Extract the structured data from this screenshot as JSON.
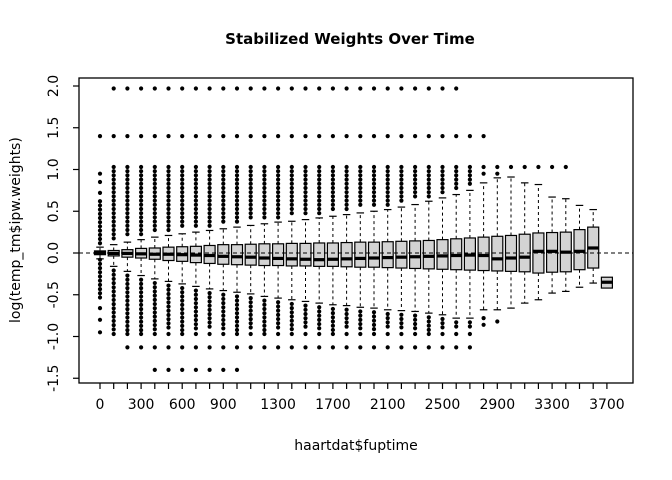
{
  "figure": {
    "title": "Stabilized Weights Over Time",
    "xlabel": "haartdat$fuptime",
    "ylabel": "log(temp_tm$ipw.weights)"
  },
  "colors": {
    "box_fill": "#d3d3d3",
    "stroke": "#000000",
    "background": "#ffffff"
  },
  "chart_data": {
    "type": "boxplot",
    "title": "Stabilized Weights Over Time",
    "xlabel": "haartdat$fuptime",
    "ylabel": "log(temp_tm$ipw.weights)",
    "grid": false,
    "reference_line_y": 0,
    "reference_line_style": "dashed",
    "x_categories_step": 100,
    "x_range": [
      0,
      3700
    ],
    "x_labeled_ticks": [
      0,
      300,
      600,
      900,
      1300,
      1700,
      2100,
      2500,
      2900,
      3300,
      3700
    ],
    "x_tick_labels": [
      "0",
      "300",
      "600",
      "900",
      "1300",
      "1700",
      "2100",
      "2500",
      "2900",
      "3300",
      "3700"
    ],
    "y_ticks": [
      2.0,
      1.5,
      1.0,
      0.5,
      0.0,
      -0.5,
      -1.0,
      -1.5
    ],
    "y_tick_labels": [
      "2.0",
      "1.5",
      "1.0",
      "0.5",
      "0.0",
      "-0.5",
      "-1.0",
      "-1.5"
    ],
    "ylim": [
      -1.56,
      2.1
    ],
    "boxes": [
      {
        "t": 0,
        "med": 0.0,
        "q1": -0.02,
        "q3": 0.025,
        "wlo": -0.07,
        "whi": 0.07,
        "hi_col": [
          0.08,
          0.62
        ],
        "lo_col": [
          -0.08,
          -0.55
        ],
        "hi_dots": [
          0.72,
          0.85,
          0.95
        ],
        "lo_dots": [
          -0.66,
          -0.8,
          -0.95
        ]
      },
      {
        "t": 100,
        "med": -0.005,
        "q1": -0.035,
        "q3": 0.03,
        "wlo": -0.16,
        "whi": 0.1,
        "hi_col": [
          0.15,
          1.03
        ],
        "lo_col": [
          -0.21,
          -0.93
        ],
        "hi_dots": [],
        "lo_dots": []
      },
      {
        "t": 200,
        "med": -0.005,
        "q1": -0.05,
        "q3": 0.04,
        "wlo": -0.22,
        "whi": 0.13,
        "hi_col": [
          0.18,
          1.03
        ],
        "lo_col": [
          -0.27,
          -0.93
        ],
        "hi_dots": [],
        "lo_dots": []
      },
      {
        "t": 300,
        "med": -0.01,
        "q1": -0.06,
        "q3": 0.055,
        "wlo": -0.27,
        "whi": 0.16,
        "hi_col": [
          0.21,
          1.03
        ],
        "lo_col": [
          -0.32,
          -0.93
        ],
        "hi_dots": [],
        "lo_dots": []
      },
      {
        "t": 400,
        "med": -0.015,
        "q1": -0.075,
        "q3": 0.06,
        "wlo": -0.31,
        "whi": 0.19,
        "hi_col": [
          0.24,
          1.03
        ],
        "lo_col": [
          -0.36,
          -0.93
        ],
        "hi_dots": [],
        "lo_dots": []
      },
      {
        "t": 500,
        "med": -0.015,
        "q1": -0.09,
        "q3": 0.07,
        "wlo": -0.34,
        "whi": 0.21,
        "hi_col": [
          0.26,
          1.03
        ],
        "lo_col": [
          -0.39,
          -0.93
        ],
        "hi_dots": [],
        "lo_dots": []
      },
      {
        "t": 600,
        "med": -0.02,
        "q1": -0.1,
        "q3": 0.075,
        "wlo": -0.37,
        "whi": 0.23,
        "hi_col": [
          0.28,
          1.03
        ],
        "lo_col": [
          -0.42,
          -0.93
        ],
        "hi_dots": [],
        "lo_dots": []
      },
      {
        "t": 700,
        "med": -0.025,
        "q1": -0.115,
        "q3": 0.08,
        "wlo": -0.4,
        "whi": 0.25,
        "hi_col": [
          0.3,
          1.03
        ],
        "lo_col": [
          -0.45,
          -0.93
        ],
        "hi_dots": [],
        "lo_dots": []
      },
      {
        "t": 800,
        "med": -0.03,
        "q1": -0.125,
        "q3": 0.09,
        "wlo": -0.43,
        "whi": 0.27,
        "hi_col": [
          0.32,
          1.03
        ],
        "lo_col": [
          -0.48,
          -0.93
        ],
        "hi_dots": [],
        "lo_dots": []
      },
      {
        "t": 900,
        "med": -0.04,
        "q1": -0.135,
        "q3": 0.1,
        "wlo": -0.45,
        "whi": 0.29,
        "hi_col": [
          0.34,
          1.03
        ],
        "lo_col": [
          -0.5,
          -0.93
        ],
        "hi_dots": [],
        "lo_dots": []
      },
      {
        "t": 1000,
        "med": -0.045,
        "q1": -0.14,
        "q3": 0.1,
        "wlo": -0.47,
        "whi": 0.31,
        "hi_col": [
          0.36,
          1.03
        ],
        "lo_col": [
          -0.52,
          -0.93
        ],
        "hi_dots": [],
        "lo_dots": []
      },
      {
        "t": 1100,
        "med": -0.05,
        "q1": -0.145,
        "q3": 0.105,
        "wlo": -0.49,
        "whi": 0.33,
        "hi_col": [
          0.38,
          1.03
        ],
        "lo_col": [
          -0.54,
          -0.93
        ],
        "hi_dots": [],
        "lo_dots": []
      },
      {
        "t": 1200,
        "med": -0.06,
        "q1": -0.15,
        "q3": 0.11,
        "wlo": -0.52,
        "whi": 0.35,
        "hi_col": [
          0.4,
          1.03
        ],
        "lo_col": [
          -0.57,
          -0.93
        ],
        "hi_dots": [],
        "lo_dots": []
      },
      {
        "t": 1300,
        "med": -0.065,
        "q1": -0.15,
        "q3": 0.11,
        "wlo": -0.54,
        "whi": 0.37,
        "hi_col": [
          0.42,
          1.03
        ],
        "lo_col": [
          -0.59,
          -0.93
        ],
        "hi_dots": [],
        "lo_dots": []
      },
      {
        "t": 1400,
        "med": -0.07,
        "q1": -0.155,
        "q3": 0.115,
        "wlo": -0.56,
        "whi": 0.38,
        "hi_col": [
          0.43,
          1.03
        ],
        "lo_col": [
          -0.61,
          -0.93
        ],
        "hi_dots": [],
        "lo_dots": []
      },
      {
        "t": 1500,
        "med": -0.075,
        "q1": -0.155,
        "q3": 0.115,
        "wlo": -0.58,
        "whi": 0.4,
        "hi_col": [
          0.45,
          1.03
        ],
        "lo_col": [
          -0.63,
          -0.93
        ],
        "hi_dots": [],
        "lo_dots": []
      },
      {
        "t": 1600,
        "med": -0.08,
        "q1": -0.16,
        "q3": 0.12,
        "wlo": -0.6,
        "whi": 0.42,
        "hi_col": [
          0.47,
          1.03
        ],
        "lo_col": [
          -0.65,
          -0.93
        ],
        "hi_dots": [],
        "lo_dots": []
      },
      {
        "t": 1700,
        "med": -0.075,
        "q1": -0.16,
        "q3": 0.12,
        "wlo": -0.62,
        "whi": 0.44,
        "hi_col": [
          0.49,
          1.03
        ],
        "lo_col": [
          -0.67,
          -0.93
        ],
        "hi_dots": [],
        "lo_dots": []
      },
      {
        "t": 1800,
        "med": -0.07,
        "q1": -0.165,
        "q3": 0.125,
        "wlo": -0.63,
        "whi": 0.46,
        "hi_col": [
          0.51,
          1.03
        ],
        "lo_col": [
          -0.68,
          -0.93
        ],
        "hi_dots": [],
        "lo_dots": []
      },
      {
        "t": 1900,
        "med": -0.065,
        "q1": -0.17,
        "q3": 0.13,
        "wlo": -0.65,
        "whi": 0.48,
        "hi_col": [
          0.53,
          1.03
        ],
        "lo_col": [
          -0.7,
          -0.93
        ],
        "hi_dots": [],
        "lo_dots": []
      },
      {
        "t": 2000,
        "med": -0.06,
        "q1": -0.17,
        "q3": 0.13,
        "wlo": -0.66,
        "whi": 0.5,
        "hi_col": [
          0.55,
          1.03
        ],
        "lo_col": [
          -0.71,
          -0.93
        ],
        "hi_dots": [],
        "lo_dots": []
      },
      {
        "t": 2100,
        "med": -0.055,
        "q1": -0.175,
        "q3": 0.135,
        "wlo": -0.68,
        "whi": 0.52,
        "hi_col": [
          0.57,
          1.03
        ],
        "lo_col": [
          -0.73,
          -0.93
        ],
        "hi_dots": [],
        "lo_dots": []
      },
      {
        "t": 2200,
        "med": -0.05,
        "q1": -0.18,
        "q3": 0.14,
        "wlo": -0.69,
        "whi": 0.55,
        "hi_col": [
          0.6,
          1.03
        ],
        "lo_col": [
          -0.74,
          -0.93
        ],
        "hi_dots": [],
        "lo_dots": []
      },
      {
        "t": 2300,
        "med": -0.045,
        "q1": -0.185,
        "q3": 0.145,
        "wlo": -0.7,
        "whi": 0.58,
        "hi_col": [
          0.63,
          1.03
        ],
        "lo_col": [
          -0.75,
          -0.93
        ],
        "hi_dots": [],
        "lo_dots": []
      },
      {
        "t": 2400,
        "med": -0.04,
        "q1": -0.19,
        "q3": 0.15,
        "wlo": -0.72,
        "whi": 0.62,
        "hi_col": [
          0.67,
          1.03
        ],
        "lo_col": [
          -0.77,
          -0.93
        ],
        "hi_dots": [],
        "lo_dots": []
      },
      {
        "t": 2500,
        "med": -0.035,
        "q1": -0.195,
        "q3": 0.16,
        "wlo": -0.74,
        "whi": 0.66,
        "hi_col": [
          0.71,
          1.03
        ],
        "lo_col": [
          -0.79,
          -0.93
        ],
        "hi_dots": [],
        "lo_dots": []
      },
      {
        "t": 2600,
        "med": -0.03,
        "q1": -0.2,
        "q3": 0.17,
        "wlo": -0.78,
        "whi": 0.7,
        "hi_col": [
          0.75,
          1.03
        ],
        "lo_col": [
          -0.83,
          -0.93
        ],
        "hi_dots": [],
        "lo_dots": []
      },
      {
        "t": 2700,
        "med": -0.025,
        "q1": -0.205,
        "q3": 0.18,
        "wlo": -0.78,
        "whi": 0.75,
        "hi_col": [
          0.8,
          1.03
        ],
        "lo_col": [
          -0.83,
          -0.93
        ],
        "hi_dots": [],
        "lo_dots": []
      },
      {
        "t": 2800,
        "med": -0.03,
        "q1": -0.21,
        "q3": 0.19,
        "wlo": -0.68,
        "whi": 0.84,
        "hi_col": null,
        "lo_col": null,
        "hi_dots": [
          0.95,
          1.03
        ],
        "lo_dots": [
          -0.78,
          -0.86
        ]
      },
      {
        "t": 2900,
        "med": -0.07,
        "q1": -0.215,
        "q3": 0.2,
        "wlo": -0.68,
        "whi": 0.9,
        "hi_col": null,
        "lo_col": null,
        "hi_dots": [
          0.95,
          1.03
        ],
        "lo_dots": [
          -0.82
        ]
      },
      {
        "t": 3000,
        "med": -0.06,
        "q1": -0.22,
        "q3": 0.21,
        "wlo": -0.66,
        "whi": 0.91,
        "hi_col": null,
        "lo_col": null,
        "hi_dots": [
          1.03
        ],
        "lo_dots": []
      },
      {
        "t": 3100,
        "med": -0.05,
        "q1": -0.225,
        "q3": 0.225,
        "wlo": -0.6,
        "whi": 0.84,
        "hi_col": null,
        "lo_col": null,
        "hi_dots": [
          1.03
        ],
        "lo_dots": []
      },
      {
        "t": 3200,
        "med": 0.02,
        "q1": -0.24,
        "q3": 0.24,
        "wlo": -0.56,
        "whi": 0.82,
        "hi_col": null,
        "lo_col": null,
        "hi_dots": [
          1.03
        ],
        "lo_dots": []
      },
      {
        "t": 3300,
        "med": 0.02,
        "q1": -0.23,
        "q3": 0.245,
        "wlo": -0.48,
        "whi": 0.67,
        "hi_col": null,
        "lo_col": null,
        "hi_dots": [
          1.03
        ],
        "lo_dots": []
      },
      {
        "t": 3400,
        "med": 0.01,
        "q1": -0.225,
        "q3": 0.25,
        "wlo": -0.46,
        "whi": 0.65,
        "hi_col": null,
        "lo_col": null,
        "hi_dots": [
          1.03
        ],
        "lo_dots": []
      },
      {
        "t": 3500,
        "med": 0.02,
        "q1": -0.2,
        "q3": 0.28,
        "wlo": -0.41,
        "whi": 0.57,
        "hi_col": null,
        "lo_col": null,
        "hi_dots": [],
        "lo_dots": []
      },
      {
        "t": 3600,
        "med": 0.06,
        "q1": -0.18,
        "q3": 0.31,
        "wlo": -0.36,
        "whi": 0.52,
        "hi_col": null,
        "lo_col": null,
        "hi_dots": [],
        "lo_dots": []
      },
      {
        "t": 3700,
        "med": -0.35,
        "q1": -0.42,
        "q3": -0.29,
        "wlo": null,
        "whi": null,
        "hi_col": null,
        "lo_col": null,
        "hi_dots": [],
        "lo_dots": []
      }
    ],
    "outlier_rows": [
      {
        "v": 1.97,
        "from": 100,
        "to": 2600
      },
      {
        "v": 1.4,
        "from": 0,
        "to": 2800
      },
      {
        "v": -0.97,
        "from": 100,
        "to": 2700
      },
      {
        "v": -1.13,
        "from": 200,
        "to": 2700
      },
      {
        "v": -1.4,
        "from": 400,
        "to": 1000
      }
    ]
  }
}
